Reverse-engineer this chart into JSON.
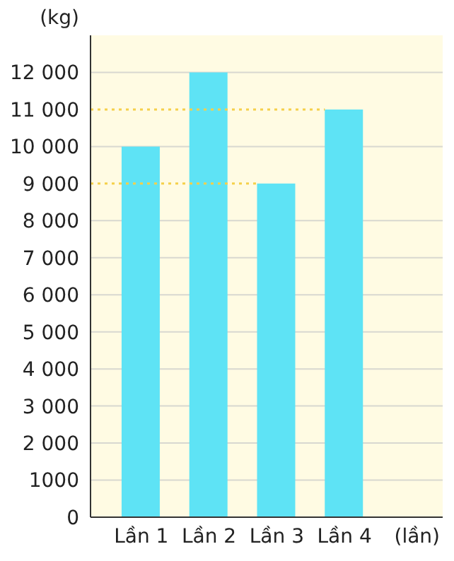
{
  "chart_data": {
    "type": "bar",
    "categories": [
      "Lần 1",
      "Lần 2",
      "Lần 3",
      "Lần 4"
    ],
    "values": [
      10000,
      12000,
      9000,
      11000
    ],
    "color": "#5ee3f5",
    "ylabel": "(kg)",
    "xlabel": "(lần)",
    "ylim": [
      0,
      13000
    ],
    "yticks": [
      0,
      1000,
      {
        "value": 2000,
        "label": "2 000"
      },
      {
        "value": 3000,
        "label": "3 000"
      },
      {
        "value": 4000,
        "label": "4 000"
      },
      {
        "value": 5000,
        "label": "5 000"
      },
      {
        "value": 6000,
        "label": "6 000"
      },
      {
        "value": 7000,
        "label": "7 000"
      },
      {
        "value": 8000,
        "label": "8 000"
      },
      {
        "value": 9000,
        "label": "9 000"
      },
      {
        "value": 10000,
        "label": "10 000"
      },
      {
        "value": 11000,
        "label": "11 000"
      },
      {
        "value": 12000,
        "label": "12 000"
      }
    ],
    "grid": "y",
    "legend": false,
    "ref_lines": [
      {
        "axis": "y",
        "value": 11000,
        "color": "#f5d04a",
        "line_style": "dotted"
      },
      {
        "axis": "y",
        "value": 9000,
        "color": "#f5d04a",
        "line_style": "dotted"
      }
    ]
  }
}
